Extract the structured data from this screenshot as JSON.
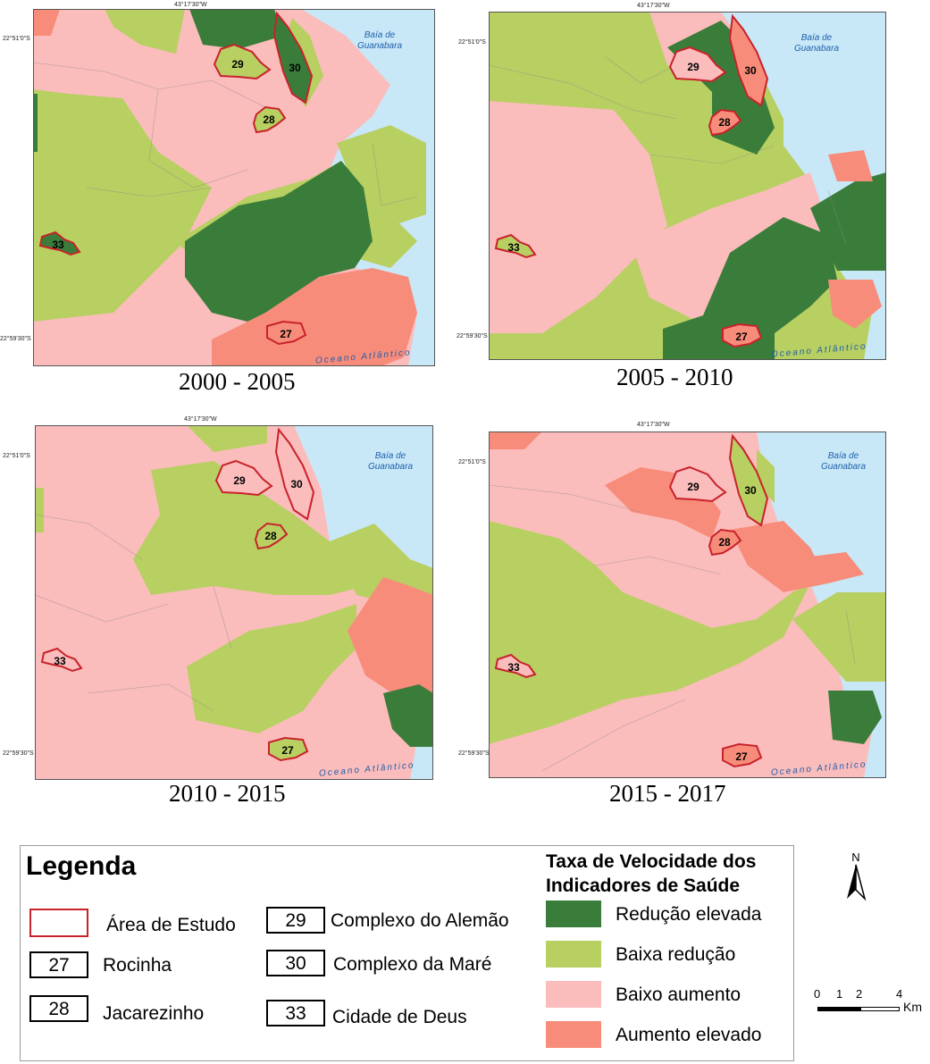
{
  "coords": {
    "lon": "43°17'30\"W",
    "lat_top": "22°51'0\"S",
    "lat_bottom": "22°59'30\"S"
  },
  "water": {
    "bay_line1": "Baía de",
    "bay_line2": "Guanabara",
    "ocean": "Oceano Atlântico"
  },
  "panels": [
    {
      "period": "2000 - 2005"
    },
    {
      "period": "2005 - 2010"
    },
    {
      "period": "2010 - 2015"
    },
    {
      "period": "2015 - 2017"
    }
  ],
  "colors": {
    "reducao_elevada": "#3a7d3a",
    "baixa_reducao": "#b8cf62",
    "baixo_aumento": "#fbbcbc",
    "aumento_elevado": "#f88c7a",
    "water": "#c8e8f8",
    "study_border": "#c8222a"
  },
  "study_areas": {
    "27": {
      "c2000": "aumento_elevado",
      "c2005": "aumento_elevado",
      "c2010": "baixa_reducao",
      "c2015": "aumento_elevado"
    },
    "28": {
      "c2000": "baixa_reducao",
      "c2005": "aumento_elevado",
      "c2010": "baixa_reducao",
      "c2015": "aumento_elevado"
    },
    "29": {
      "c2000": "baixa_reducao",
      "c2005": "baixo_aumento",
      "c2010": "baixo_aumento",
      "c2015": "baixo_aumento"
    },
    "30": {
      "c2000": "reducao_elevada",
      "c2005": "aumento_elevado",
      "c2010": "baixo_aumento",
      "c2015": "baixa_reducao"
    },
    "33": {
      "c2000": "reducao_elevada",
      "c2005": "baixa_reducao",
      "c2010": "baixo_aumento",
      "c2015": "baixo_aumento"
    }
  },
  "legend": {
    "title": "Legenda",
    "study_area": "Área de Estudo",
    "items": [
      {
        "num": "27",
        "name": "Rocinha"
      },
      {
        "num": "28",
        "name": "Jacarezinho"
      },
      {
        "num": "29",
        "name": "Complexo do Alemão"
      },
      {
        "num": "30",
        "name": "Complexo da Maré"
      },
      {
        "num": "33",
        "name": "Cidade de Deus"
      }
    ],
    "rate_title_1": "Taxa de Velocidade dos",
    "rate_title_2": "Indicadores de Saúde",
    "classes": [
      {
        "label": "Redução elevada",
        "color": "#3a7d3a"
      },
      {
        "label": "Baixa redução",
        "color": "#b8cf62"
      },
      {
        "label": "Baixo aumento",
        "color": "#fbbcbc"
      },
      {
        "label": "Aumento elevado",
        "color": "#f88c7a"
      }
    ]
  },
  "north": "N",
  "scale": {
    "t0": "0",
    "t1": "1",
    "t2": "2",
    "t4": "4",
    "unit": "Km"
  }
}
